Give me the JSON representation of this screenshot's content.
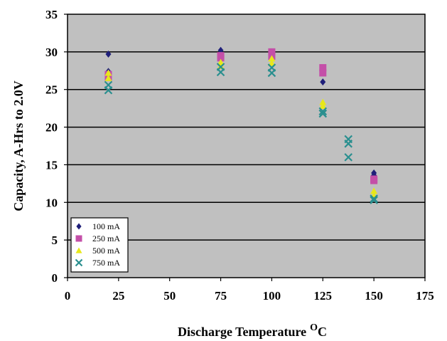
{
  "chart_data": {
    "type": "scatter",
    "xlabel": "Discharge Temperature",
    "xlabel_unit": "C",
    "xlabel_unit_sup": "O",
    "ylabel": "Capacity, A-Hrs to 2.0V",
    "xlim": [
      0,
      175
    ],
    "ylim": [
      0,
      35
    ],
    "xticks": [
      "0",
      "25",
      "50",
      "75",
      "100",
      "125",
      "150",
      "175"
    ],
    "yticks": [
      "0",
      "5",
      "10",
      "15",
      "20",
      "25",
      "30",
      "35"
    ],
    "grid": "horizontal",
    "legend_position": "bottom-left",
    "series": [
      {
        "name": "100 mA",
        "color": "#1f1f7a",
        "marker": "diamond",
        "points": [
          [
            20,
            29.7
          ],
          [
            20,
            27.4
          ],
          [
            75,
            30.2
          ],
          [
            75,
            29.8
          ],
          [
            100,
            30.0
          ],
          [
            100,
            29.6
          ],
          [
            125,
            27.6
          ],
          [
            125,
            26.0
          ],
          [
            150,
            13.9
          ],
          [
            150,
            13.6
          ]
        ]
      },
      {
        "name": "250 mA",
        "color": "#c44fa8",
        "marker": "square",
        "points": [
          [
            20,
            27.0
          ],
          [
            20,
            26.6
          ],
          [
            75,
            29.5
          ],
          [
            75,
            29.2
          ],
          [
            100,
            30.0
          ],
          [
            100,
            29.4
          ],
          [
            125,
            27.9
          ],
          [
            125,
            27.2
          ],
          [
            150,
            13.1
          ],
          [
            150,
            12.9
          ]
        ]
      },
      {
        "name": "500 mA",
        "color": "#e8e81a",
        "marker": "triangle",
        "points": [
          [
            20,
            27.2
          ],
          [
            20,
            26.5
          ],
          [
            75,
            28.6
          ],
          [
            75,
            28.1
          ],
          [
            100,
            29.1
          ],
          [
            100,
            28.5
          ],
          [
            125,
            23.3
          ],
          [
            125,
            22.8
          ],
          [
            150,
            11.5
          ],
          [
            150,
            10.9
          ]
        ]
      },
      {
        "name": "750 mA",
        "color": "#2a8f8f",
        "marker": "x",
        "points": [
          [
            20,
            25.6
          ],
          [
            20,
            24.9
          ],
          [
            75,
            28.0
          ],
          [
            75,
            27.3
          ],
          [
            100,
            27.9
          ],
          [
            100,
            27.2
          ],
          [
            125,
            22.1
          ],
          [
            125,
            21.8
          ],
          [
            137.5,
            18.4
          ],
          [
            137.5,
            17.8
          ],
          [
            137.5,
            16.0
          ],
          [
            150,
            10.5
          ],
          [
            150,
            10.3
          ]
        ]
      }
    ]
  }
}
